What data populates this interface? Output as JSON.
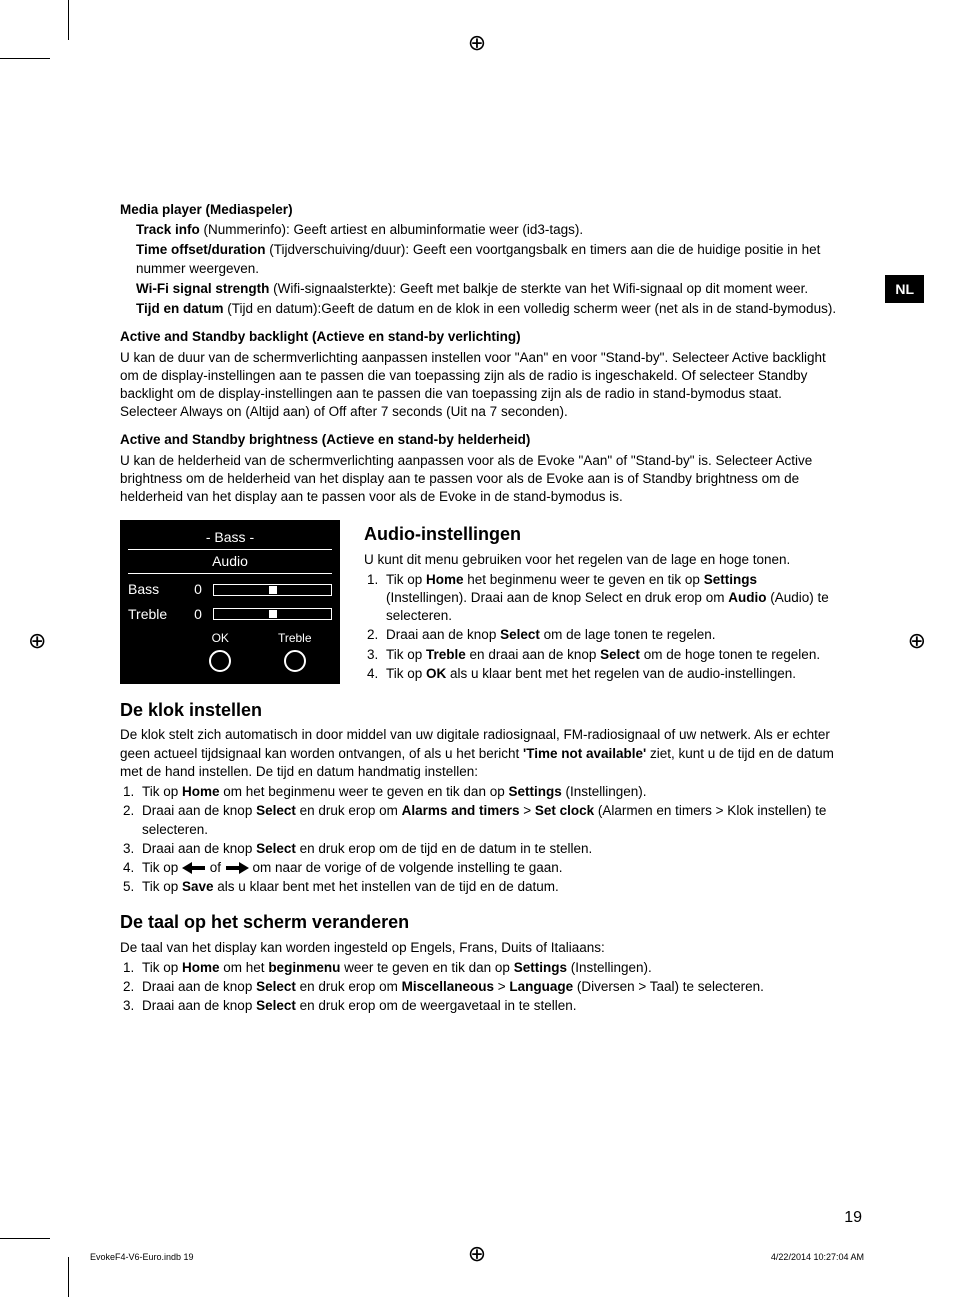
{
  "lang_tab": "NL",
  "section1": {
    "title": "Media player (Mediaspeler)",
    "items": [
      {
        "bold": "Track info",
        "rest": " (Nummerinfo): Geeft artiest en albuminformatie weer (id3-tags)."
      },
      {
        "bold": "Time offset/duration",
        "rest": " (Tijdverschuiving/duur): Geeft een voortgangsbalk en timers aan die de huidige positie in het nummer weergeven."
      },
      {
        "bold": "Wi-Fi signal strength",
        "rest": " (Wifi-signaalsterkte): Geeft met balkje de sterkte van het Wifi-signaal op dit moment weer."
      },
      {
        "bold": "Tijd en datum",
        "rest": " (Tijd en datum):Geeft de datum en de klok in een volledig scherm weer (net als in de stand-bymodus)."
      }
    ]
  },
  "section2": {
    "title": "Active and Standby backlight (Actieve en stand-by verlichting)",
    "para_parts": [
      "U kan de duur van de schermverlichting aanpassen instellen voor \"Aan\" en voor \"Stand-by\". Selecteer ",
      "Active backlight",
      " om de display-instellingen aan te passen die van toepassing zijn als de radio is ingeschakeld. Of selecteer ",
      "Standby backlight",
      " om de display-instellingen aan te passen die van toepassing zijn als de radio in stand-bymodus staat.  Selecteer ",
      "Always on",
      " (Altijd aan) of ",
      "Off after 7 seconds",
      " (Uit na 7 seconden)."
    ]
  },
  "section3": {
    "title": "Active and Standby brightness (Actieve en stand-by helderheid)",
    "para_parts": [
      "U kan de helderheid van de schermverlichting aanpassen voor als de Evoke \"Aan\" of \"Stand-by\" is. Selecteer ",
      "Active brightness",
      " om de helderheid van het display aan te passen voor als de Evoke aan is of ",
      "Standby brightness",
      " om de helderheid van het display aan te passen voor als de Evoke in de stand-bymodus is."
    ]
  },
  "audio_widget": {
    "header1": "- Bass -",
    "header2": "Audio",
    "rows": [
      {
        "label": "Bass",
        "value": "0"
      },
      {
        "label": "Treble",
        "value": "0"
      }
    ],
    "buttons": [
      "OK",
      "Treble"
    ]
  },
  "section_audio": {
    "heading": "Audio-instellingen",
    "intro": "U kunt dit menu gebruiken voor het regelen van de lage en hoge tonen.",
    "steps": [
      {
        "parts": [
          "Tik op ",
          {
            "b": "Home"
          },
          " het beginmenu weer te geven en tik op ",
          {
            "b": "Settings"
          },
          " (Instellingen). Draai aan de knop Select en druk erop om ",
          {
            "b": "Audio"
          },
          " (Audio) te selecteren."
        ]
      },
      {
        "parts": [
          "Draai aan de knop ",
          {
            "b": "Select"
          },
          " om de lage tonen te regelen."
        ]
      },
      {
        "parts": [
          "Tik op ",
          {
            "b": "Treble"
          },
          " en draai aan de knop ",
          {
            "b": "Select"
          },
          " om de hoge tonen te regelen."
        ]
      },
      {
        "parts": [
          "Tik op ",
          {
            "b": "OK"
          },
          " als u klaar bent met het regelen van de audio-instellingen."
        ]
      }
    ]
  },
  "section_clock": {
    "heading": "De klok instellen",
    "intro_parts": [
      "De klok stelt zich automatisch in door middel van uw digitale radiosignaal, FM-radiosignaal of uw netwerk. Als er echter geen actueel tijdsignaal kan worden ontvangen, of als u het bericht ",
      {
        "b": "'Time not available'"
      },
      " ziet, kunt u de tijd en de datum met de hand instellen. De tijd en datum handmatig instellen:"
    ],
    "steps": [
      {
        "parts": [
          "Tik op ",
          {
            "b": "Home"
          },
          " om het beginmenu weer te geven en tik dan op ",
          {
            "b": "Settings"
          },
          " (Instellingen)."
        ]
      },
      {
        "parts": [
          "Draai aan de knop ",
          {
            "b": "Select"
          },
          " en druk erop om ",
          {
            "b": "Alarms and timers"
          },
          " > ",
          {
            "b": "Set clock"
          },
          " (Alarmen en timers > Klok instellen) te selecteren."
        ]
      },
      {
        "parts": [
          "Draai aan de knop ",
          {
            "b": "Select"
          },
          " en druk erop om de tijd en de datum in te stellen."
        ]
      },
      {
        "parts": [
          "Tik op ",
          {
            "arrow": "left"
          },
          " of ",
          {
            "arrow": "right"
          },
          " om naar de vorige of de volgende instelling te gaan."
        ]
      },
      {
        "parts": [
          "Tik op ",
          {
            "b": "Save"
          },
          " als u klaar bent met het instellen van de tijd en de datum."
        ]
      }
    ]
  },
  "section_lang": {
    "heading": "De taal op het scherm veranderen",
    "intro": "De taal van het display kan worden ingesteld op Engels, Frans, Duits of Italiaans:",
    "steps": [
      {
        "parts": [
          "Tik op ",
          {
            "b": "Home"
          },
          " om het ",
          {
            "b": "beginmenu"
          },
          " weer te geven en tik dan op ",
          {
            "b": "Settings"
          },
          " (Instellingen)."
        ]
      },
      {
        "parts": [
          "Draai aan de knop ",
          {
            "b": "Select"
          },
          " en druk erop om  ",
          {
            "b": "Miscellaneous"
          },
          " > ",
          {
            "b": "Language"
          },
          " (Diversen > Taal) te selecteren."
        ]
      },
      {
        "parts": [
          "Draai aan de knop ",
          {
            "b": "Select"
          },
          " en druk erop om de weergavetaal in te stellen."
        ]
      }
    ]
  },
  "page_number": "19",
  "footer_left": "EvokeF4-V6-Euro.indb   19",
  "footer_right": "4/22/2014   10:27:04 AM"
}
